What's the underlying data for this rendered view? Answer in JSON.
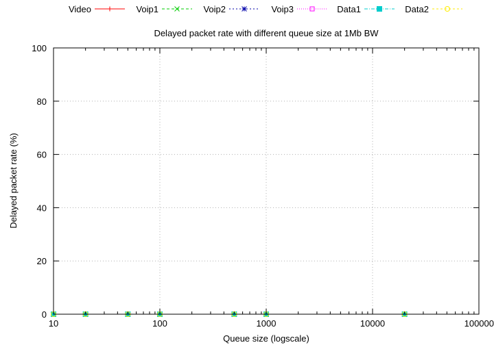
{
  "chart_data": {
    "type": "line",
    "title": "Delayed packet rate  with different queue size at 1Mb BW",
    "xlabel": "Queue size (logscale)",
    "ylabel": "Delayed packet rate (%)",
    "x_scale": "log",
    "xlim": [
      10,
      100000
    ],
    "ylim": [
      0,
      100
    ],
    "x_ticks": [
      10,
      100,
      1000,
      10000,
      100000
    ],
    "x_tick_labels": [
      "10",
      "100",
      "1000",
      "10000",
      "100000"
    ],
    "y_ticks": [
      0,
      20,
      40,
      60,
      80,
      100
    ],
    "y_tick_labels": [
      "0",
      "20",
      "40",
      "60",
      "80",
      "100"
    ],
    "grid": true,
    "legend_position": "top",
    "x": [
      10,
      20,
      50,
      100,
      500,
      1000,
      20000
    ],
    "series": [
      {
        "name": "Video",
        "color": "#ff0000",
        "marker": "plus",
        "dash": "",
        "values": [
          0,
          0,
          0,
          0,
          0,
          0,
          0
        ]
      },
      {
        "name": "Voip1",
        "color": "#00cc00",
        "marker": "cross",
        "dash": "4 3",
        "values": [
          0,
          0,
          0,
          0,
          0,
          0,
          0
        ]
      },
      {
        "name": "Voip2",
        "color": "#0000aa",
        "marker": "star",
        "dash": "2 3",
        "values": [
          0,
          0,
          0,
          0,
          0,
          0,
          0
        ]
      },
      {
        "name": "Voip3",
        "color": "#ff00ff",
        "marker": "square-open",
        "dash": "1 2",
        "values": [
          0,
          0,
          0,
          0,
          0,
          0,
          0
        ]
      },
      {
        "name": "Data1",
        "color": "#00cccc",
        "marker": "square-filled",
        "dash": "5 2 1 2",
        "values": [
          0,
          0,
          0,
          0,
          0,
          0,
          0
        ]
      },
      {
        "name": "Data2",
        "color": "#ffee00",
        "marker": "circle-open",
        "dash": "3 3",
        "values": [
          0,
          0,
          0,
          0,
          0,
          0,
          0
        ]
      }
    ]
  }
}
